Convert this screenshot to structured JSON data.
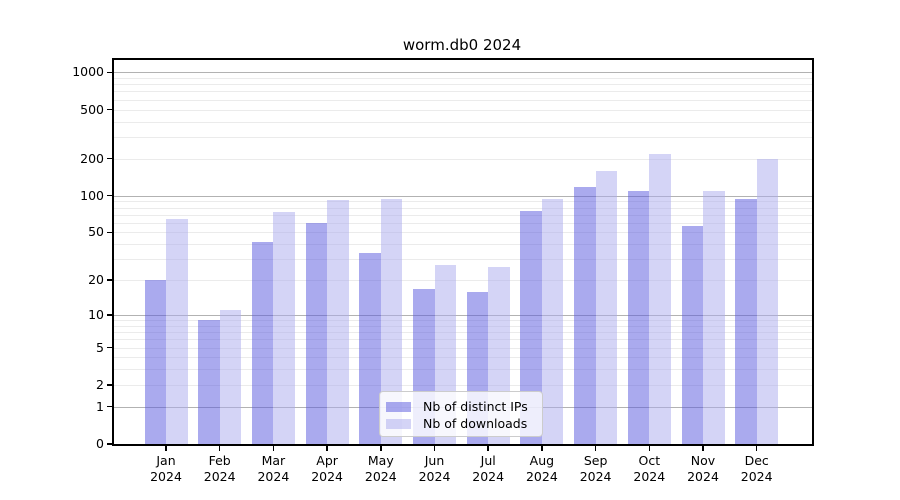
{
  "title": "worm.db0 2024",
  "chart_data": {
    "type": "bar",
    "title": "worm.db0 2024",
    "categories": [
      "Jan",
      "Feb",
      "Mar",
      "Apr",
      "May",
      "Jun",
      "Jul",
      "Aug",
      "Sep",
      "Oct",
      "Nov",
      "Dec"
    ],
    "x_tick_year": "2024",
    "series": [
      {
        "name": "Nb of distinct IPs",
        "color": "#5555dd",
        "alpha": 0.5,
        "display_color": "#aaaaee",
        "values": [
          20,
          9,
          42,
          60,
          34,
          17,
          16,
          75,
          118,
          110,
          57,
          94
        ]
      },
      {
        "name": "Nb of downloads",
        "color": "#aaaaee",
        "alpha": 0.5,
        "display_color": "#d4d4f6",
        "values": [
          65,
          11,
          73,
          92,
          94,
          27,
          26,
          94,
          160,
          218,
          110,
          198
        ]
      }
    ],
    "xlabel": "",
    "ylabel": "",
    "yscale": "log(value+1)",
    "ylim": [
      0,
      1258
    ],
    "y_ticks": [
      1000,
      500,
      200,
      100,
      50,
      20,
      10,
      5,
      2,
      1,
      0
    ],
    "grid": true,
    "legend_position": "lower center",
    "colors": {
      "major_grid": "#b2b2b2",
      "minor_grid": "#ebebeb",
      "spine": "#000000",
      "background": "#ffffff",
      "legend_border": "#cccccc"
    }
  }
}
